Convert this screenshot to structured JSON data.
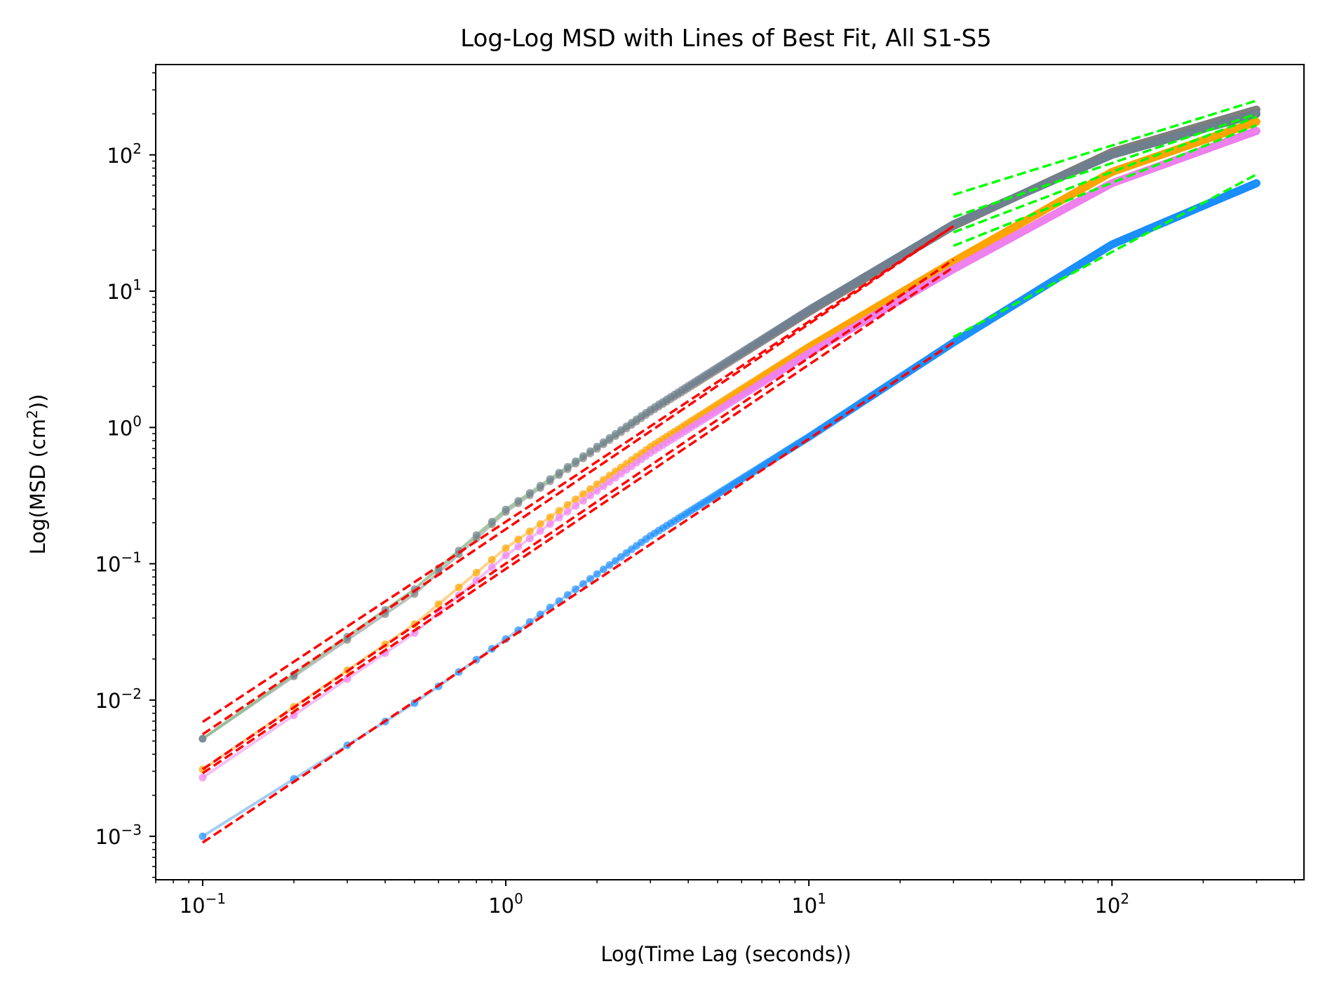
{
  "chart_data": {
    "type": "scatter",
    "title": "Log-Log MSD with Lines of Best Fit, All S1-S5",
    "xlabel": "Log(Time Lag (seconds))",
    "ylabel_main": "Log(MSD (cm",
    "ylabel_sup": "2",
    "ylabel_tail": "))",
    "xscale": "log",
    "yscale": "log",
    "xlim": [
      0.07,
      430
    ],
    "ylim": [
      0.00048,
      460
    ],
    "grid": false,
    "legend": "none",
    "x_ticks": [
      {
        "value": 0.1,
        "base": "10",
        "exp": "−1"
      },
      {
        "value": 1,
        "base": "10",
        "exp": "0"
      },
      {
        "value": 10,
        "base": "10",
        "exp": "1"
      },
      {
        "value": 100,
        "base": "10",
        "exp": "2"
      }
    ],
    "y_ticks": [
      {
        "value": 0.001,
        "base": "10",
        "exp": "−3"
      },
      {
        "value": 0.01,
        "base": "10",
        "exp": "−2"
      },
      {
        "value": 0.1,
        "base": "10",
        "exp": "−1"
      },
      {
        "value": 1,
        "base": "10",
        "exp": "0"
      },
      {
        "value": 10,
        "base": "10",
        "exp": "1"
      },
      {
        "value": 100,
        "base": "10",
        "exp": "2"
      }
    ],
    "x_range": [
      0.1,
      300
    ],
    "x_step": 0.1,
    "series": [
      {
        "color": "#808080",
        "line_color": "#a8b3ad",
        "anchors": [
          [
            0.1,
            0.0052
          ],
          [
            0.5,
            0.06
          ],
          [
            1,
            0.24
          ],
          [
            3,
            1.3
          ],
          [
            10,
            7.0
          ],
          [
            30,
            30
          ],
          [
            100,
            105
          ],
          [
            300,
            215
          ]
        ]
      },
      {
        "color": "#708090",
        "line_color": "#8fbc8f",
        "anchors": [
          [
            0.1,
            0.0052
          ],
          [
            0.5,
            0.065
          ],
          [
            1,
            0.25
          ],
          [
            3,
            1.35
          ],
          [
            10,
            7.3
          ],
          [
            30,
            31
          ],
          [
            100,
            100
          ],
          [
            300,
            200
          ]
        ]
      },
      {
        "color": "#ffa500",
        "line_color": "#ffc870",
        "anchors": [
          [
            0.1,
            0.0031
          ],
          [
            0.5,
            0.036
          ],
          [
            1,
            0.13
          ],
          [
            3,
            0.72
          ],
          [
            10,
            3.9
          ],
          [
            30,
            16.5
          ],
          [
            100,
            75
          ],
          [
            300,
            175
          ]
        ]
      },
      {
        "color": "#ee82ee",
        "line_color": "#f2b0f0",
        "anchors": [
          [
            0.1,
            0.0027
          ],
          [
            0.5,
            0.031
          ],
          [
            1,
            0.115
          ],
          [
            3,
            0.65
          ],
          [
            10,
            3.5
          ],
          [
            30,
            14.5
          ],
          [
            100,
            62
          ],
          [
            300,
            150
          ]
        ]
      },
      {
        "color": "#1e90ff",
        "line_color": "#8cc0f0",
        "anchors": [
          [
            0.1,
            0.001
          ],
          [
            0.5,
            0.0095
          ],
          [
            1,
            0.028
          ],
          [
            3,
            0.16
          ],
          [
            10,
            0.85
          ],
          [
            30,
            4.2
          ],
          [
            100,
            22
          ],
          [
            300,
            62
          ]
        ]
      }
    ],
    "fit_lines": [
      {
        "color": "#ff0000",
        "x": [
          0.1,
          30
        ],
        "y": [
          0.0069,
          30
        ]
      },
      {
        "color": "#ff0000",
        "x": [
          0.1,
          30
        ],
        "y": [
          0.0056,
          30
        ]
      },
      {
        "color": "#ff0000",
        "x": [
          0.1,
          30
        ],
        "y": [
          0.0031,
          17
        ]
      },
      {
        "color": "#ff0000",
        "x": [
          0.1,
          30
        ],
        "y": [
          0.0029,
          15
        ]
      },
      {
        "color": "#ff0000",
        "x": [
          0.1,
          30
        ],
        "y": [
          0.0009,
          4.2
        ]
      },
      {
        "color": "#00ff00",
        "x": [
          30,
          300
        ],
        "y": [
          51,
          250
        ]
      },
      {
        "color": "#00ff00",
        "x": [
          30,
          300
        ],
        "y": [
          35,
          200
        ]
      },
      {
        "color": "#00ff00",
        "x": [
          30,
          300
        ],
        "y": [
          27,
          190
        ]
      },
      {
        "color": "#00ff00",
        "x": [
          30,
          300
        ],
        "y": [
          21.5,
          165
        ]
      },
      {
        "color": "#00ff00",
        "x": [
          30,
          300
        ],
        "y": [
          4.6,
          72
        ]
      }
    ]
  }
}
